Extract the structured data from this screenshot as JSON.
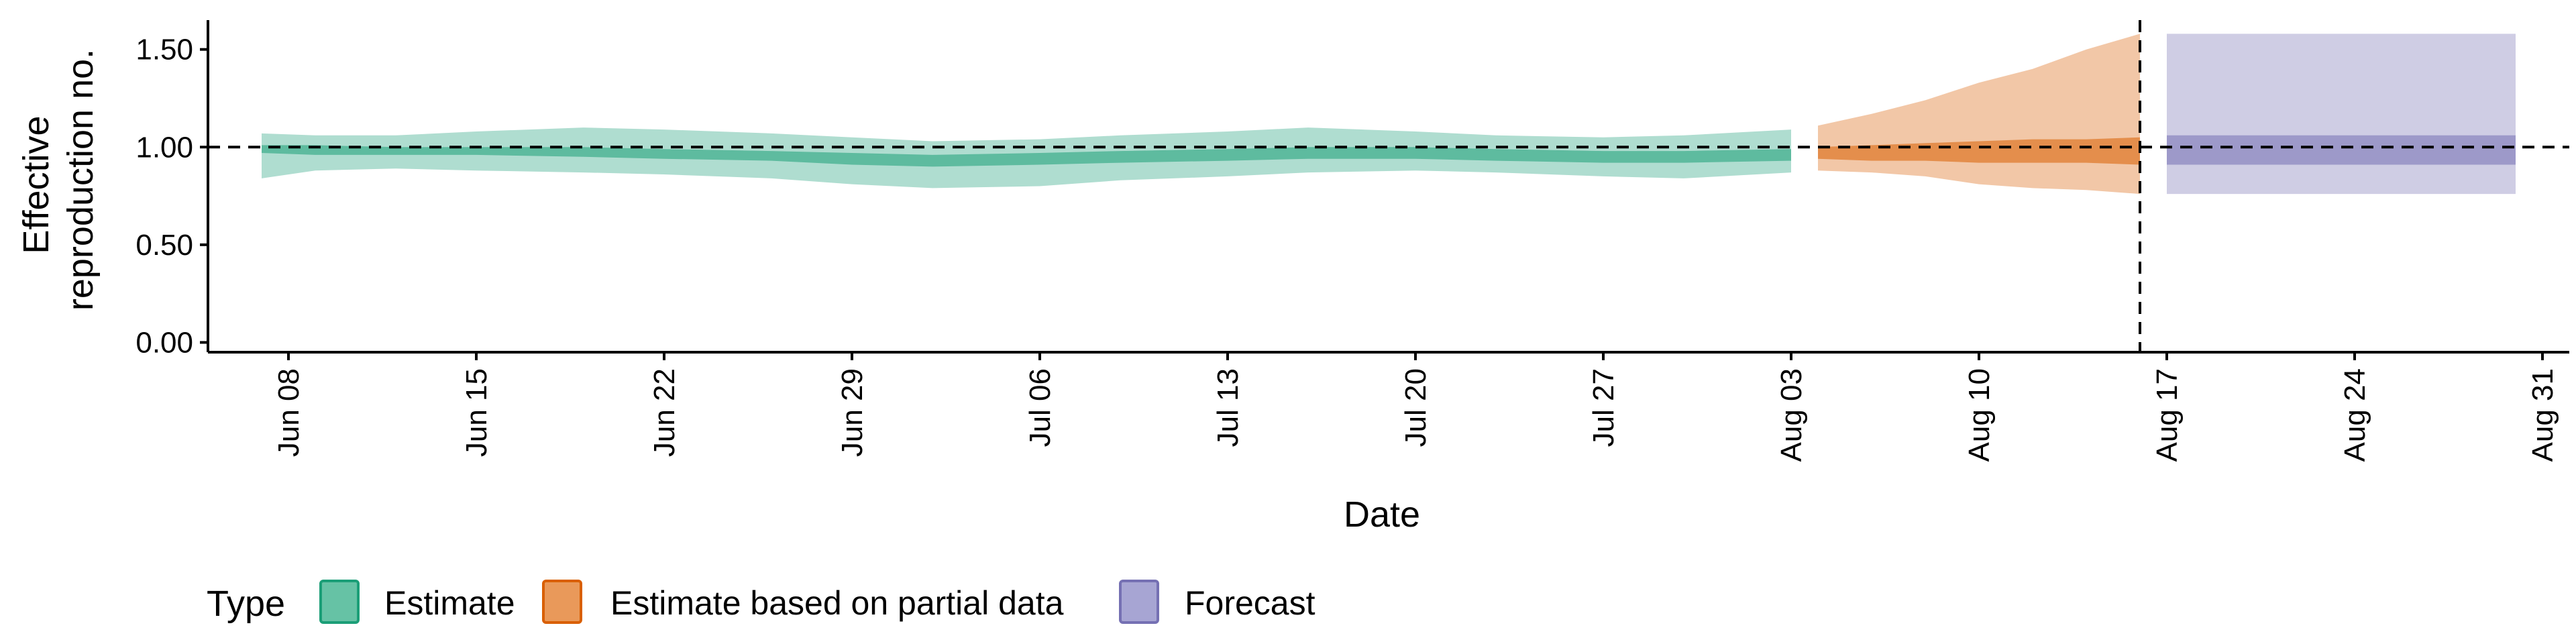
{
  "chart_data": {
    "type": "area",
    "xlabel": "Date",
    "ylabel": [
      "Effective",
      "reproduction no."
    ],
    "ylim": [
      -0.05,
      1.65
    ],
    "xlim": [
      "2020-06-05",
      "2020-09-01"
    ],
    "y_ticks": [
      0.0,
      0.5,
      1.0,
      1.5
    ],
    "y_tick_labels": [
      "0.00",
      "0.50",
      "1.00",
      "1.50"
    ],
    "x_ticks": [
      "2020-06-08",
      "2020-06-15",
      "2020-06-22",
      "2020-06-29",
      "2020-07-06",
      "2020-07-13",
      "2020-07-20",
      "2020-07-27",
      "2020-08-03",
      "2020-08-10",
      "2020-08-17",
      "2020-08-24",
      "2020-08-31"
    ],
    "x_tick_labels": [
      "Jun 08",
      "Jun 15",
      "Jun 22",
      "Jun 29",
      "Jul 06",
      "Jul 13",
      "Jul 20",
      "Jul 27",
      "Aug 03",
      "Aug 10",
      "Aug 17",
      "Aug 24",
      "Aug 31"
    ],
    "reference_hline": 1.0,
    "reference_vline": "2020-08-16",
    "legend": {
      "title": "Type",
      "position": "bottom",
      "entries": [
        {
          "label": "Estimate",
          "fill": "#66c2a5",
          "stroke": "#1b9e77"
        },
        {
          "label": "Estimate based on partial data",
          "fill": "#e9995a",
          "stroke": "#d95f02"
        },
        {
          "label": "Forecast",
          "fill": "#a7a5d3",
          "stroke": "#7570b3"
        }
      ]
    },
    "series": [
      {
        "name": "Estimate",
        "color": "#1b9e77",
        "x": [
          "2020-06-07",
          "2020-06-09",
          "2020-06-12",
          "2020-06-15",
          "2020-06-19",
          "2020-06-22",
          "2020-06-26",
          "2020-06-29",
          "2020-07-02",
          "2020-07-06",
          "2020-07-09",
          "2020-07-13",
          "2020-07-16",
          "2020-07-20",
          "2020-07-23",
          "2020-07-27",
          "2020-07-30",
          "2020-08-03"
        ],
        "outer_lower": [
          0.84,
          0.88,
          0.89,
          0.88,
          0.87,
          0.86,
          0.84,
          0.81,
          0.79,
          0.8,
          0.83,
          0.85,
          0.87,
          0.88,
          0.87,
          0.85,
          0.84,
          0.87
        ],
        "outer_upper": [
          1.07,
          1.06,
          1.06,
          1.08,
          1.1,
          1.09,
          1.07,
          1.05,
          1.03,
          1.04,
          1.06,
          1.08,
          1.1,
          1.08,
          1.06,
          1.05,
          1.06,
          1.09
        ],
        "inner_lower": [
          0.97,
          0.96,
          0.96,
          0.96,
          0.95,
          0.94,
          0.93,
          0.91,
          0.9,
          0.91,
          0.92,
          0.93,
          0.94,
          0.94,
          0.93,
          0.92,
          0.92,
          0.93
        ],
        "inner_upper": [
          1.01,
          1.01,
          1.0,
          1.0,
          1.0,
          0.99,
          0.98,
          0.97,
          0.96,
          0.97,
          0.98,
          0.99,
          1.0,
          1.0,
          0.99,
          0.98,
          0.98,
          0.99
        ]
      },
      {
        "name": "Estimate based on partial data",
        "color": "#d95f02",
        "x": [
          "2020-08-04",
          "2020-08-06",
          "2020-08-08",
          "2020-08-10",
          "2020-08-12",
          "2020-08-14",
          "2020-08-16"
        ],
        "outer_lower": [
          0.88,
          0.87,
          0.85,
          0.81,
          0.79,
          0.78,
          0.76
        ],
        "outer_upper": [
          1.11,
          1.17,
          1.24,
          1.33,
          1.4,
          1.5,
          1.58
        ],
        "inner_lower": [
          0.94,
          0.93,
          0.93,
          0.92,
          0.92,
          0.92,
          0.91
        ],
        "inner_upper": [
          1.0,
          1.01,
          1.02,
          1.03,
          1.04,
          1.04,
          1.05
        ]
      },
      {
        "name": "Forecast",
        "color": "#7570b3",
        "x": [
          "2020-08-17",
          "2020-08-30"
        ],
        "outer_lower": [
          0.76,
          0.76
        ],
        "outer_upper": [
          1.58,
          1.58
        ],
        "inner_lower": [
          0.91,
          0.91
        ],
        "inner_upper": [
          1.06,
          1.06
        ]
      }
    ]
  }
}
